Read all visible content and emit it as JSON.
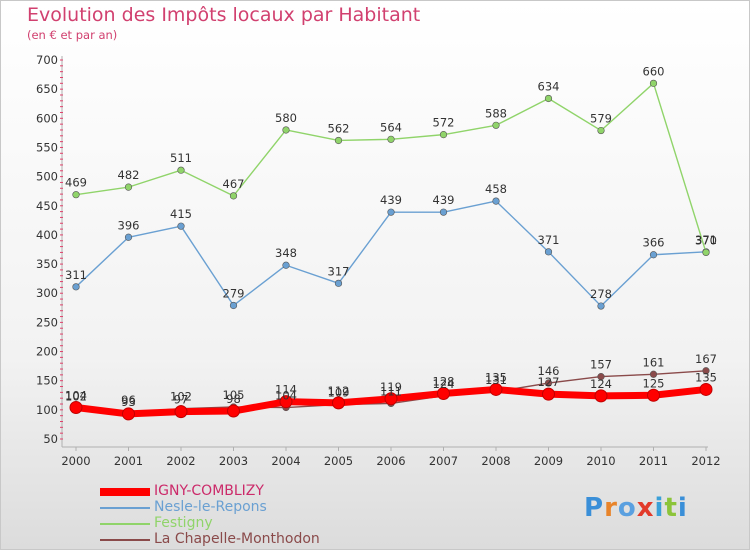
{
  "header": {
    "title": "Evolution des Impôts locaux par Habitant",
    "subtitle": "(en € et par an)"
  },
  "logo": {
    "text": "Proxiti"
  },
  "colors": {
    "title": "#d1406f",
    "igny": "#ff0000",
    "nesle": "#6aa0d2",
    "festigny": "#90d46a",
    "chapelle": "#8a4a4a"
  },
  "chart_data": {
    "type": "line",
    "title": "Evolution des Impôts locaux par Habitant",
    "subtitle": "(en € et par an)",
    "xlabel": "",
    "ylabel": "",
    "x": [
      "2000",
      "2001",
      "2002",
      "2003",
      "2004",
      "2005",
      "2006",
      "2007",
      "2008",
      "2009",
      "2010",
      "2011",
      "2012"
    ],
    "ylim": [
      50,
      700
    ],
    "yticks": [
      50,
      100,
      150,
      200,
      250,
      300,
      350,
      400,
      450,
      500,
      550,
      600,
      650,
      700
    ],
    "grid": false,
    "legend": "bottom-left",
    "series": [
      {
        "name": "IGNY-COMBLIZY",
        "color": "#ff0000",
        "values": [
          104,
          93,
          97,
          98,
          114,
          112,
          119,
          128,
          135,
          127,
          124,
          125,
          135
        ]
      },
      {
        "name": "Nesle-le-Repons",
        "color": "#6aa0d2",
        "values": [
          311,
          396,
          415,
          279,
          348,
          317,
          439,
          439,
          458,
          371,
          278,
          366,
          371
        ]
      },
      {
        "name": "Festigny",
        "color": "#90d46a",
        "values": [
          469,
          482,
          511,
          467,
          580,
          562,
          564,
          572,
          588,
          634,
          579,
          660,
          370
        ]
      },
      {
        "name": "La Chapelle-Monthodon",
        "color": "#8a4a4a",
        "values": [
          102,
          96,
          102,
          105,
          104,
          109,
          111,
          124,
          131,
          146,
          157,
          161,
          167
        ]
      }
    ]
  }
}
